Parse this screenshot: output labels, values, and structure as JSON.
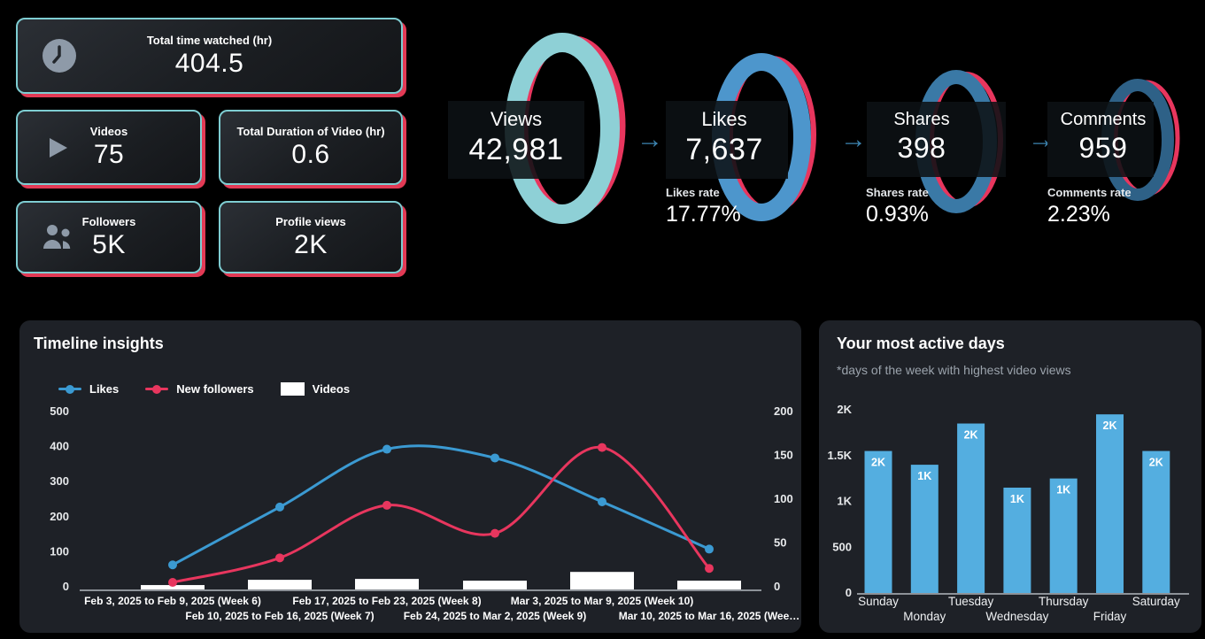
{
  "app": {
    "background": "#000000",
    "panel_bg": "#1e2127"
  },
  "stat_cards": [
    {
      "label": "Total time watched (hr)",
      "value": "404.5",
      "icon": "clock"
    },
    {
      "label": "Videos",
      "value": "75",
      "icon": "play"
    },
    {
      "label": "Total Duration of Video (hr)",
      "value": "0.6",
      "icon": null
    },
    {
      "label": "Followers",
      "value": "5K",
      "icon": "people"
    },
    {
      "label": "Profile views",
      "value": "2K",
      "icon": null
    }
  ],
  "funnel": {
    "arrow_color": "#3d84b0",
    "red_ring_color": "#e8365e",
    "steps": [
      {
        "label": "Views",
        "value": "42,981",
        "ring_color": "#8ed0d6",
        "rate_label": null,
        "rate_value": null
      },
      {
        "label": "Likes",
        "value": "7,637",
        "ring_color": "#4d96cc",
        "rate_label": "Likes rate",
        "rate_value": "17.77%"
      },
      {
        "label": "Shares",
        "value": "398",
        "ring_color": "#3a79a6",
        "rate_label": "Shares rate",
        "rate_value": "0.93%"
      },
      {
        "label": "Comments",
        "value": "959",
        "ring_color": "#2e6187",
        "rate_label": "Comments rate",
        "rate_value": "2.23%"
      }
    ]
  },
  "timeline": {
    "title": "Timeline insights"
  },
  "active_days": {
    "title": "Your most active days",
    "subtitle": "*days of the week with highest video views",
    "bar_color": "#54aee0"
  },
  "chart_data": [
    {
      "type": "line",
      "title": "Timeline insights",
      "x": [
        "Feb 3, 2025 to Feb 9, 2025 (Week 6)",
        "Feb 10, 2025 to Feb 16, 2025 (Week 7)",
        "Feb 17, 2025 to Feb 23, 2025 (Week 8)",
        "Feb 24, 2025 to Mar 2, 2025 (Week 9)",
        "Mar 3, 2025 to Mar 9, 2025 (Week 10)",
        "Mar 10, 2025 to Mar 16, 2025 (Wee…"
      ],
      "series": [
        {
          "name": "Likes",
          "type": "line",
          "axis": "left",
          "color": "#3b9ad2",
          "values": [
            60,
            225,
            390,
            365,
            240,
            105
          ]
        },
        {
          "name": "New followers",
          "type": "line",
          "axis": "left",
          "color": "#e8365e",
          "values": [
            10,
            80,
            230,
            150,
            395,
            50
          ]
        },
        {
          "name": "Videos",
          "type": "bar",
          "axis": "right",
          "color": "#ffffff",
          "values": [
            5,
            11,
            12,
            10,
            20,
            10
          ]
        }
      ],
      "left_axis": {
        "min": 0,
        "max": 500,
        "step": 100
      },
      "right_axis": {
        "min": 0,
        "max": 200,
        "step": 50
      },
      "legend_position": "top",
      "grid": false
    },
    {
      "type": "bar",
      "title": "Your most active days",
      "categories": [
        "Sunday",
        "Monday",
        "Tuesday",
        "Wednesday",
        "Thursday",
        "Friday",
        "Saturday"
      ],
      "values": [
        1550,
        1400,
        1850,
        1150,
        1250,
        1950,
        1550
      ],
      "bar_labels": [
        "2K",
        "1K",
        "2K",
        "1K",
        "1K",
        "2K",
        "2K"
      ],
      "ytick_labels": [
        "0",
        "500",
        "1K",
        "1.5K",
        "2K"
      ],
      "ytick_values": [
        0,
        500,
        1000,
        1500,
        2000
      ],
      "ylim": [
        0,
        2000
      ],
      "bar_color": "#54aee0",
      "grid": false
    }
  ]
}
